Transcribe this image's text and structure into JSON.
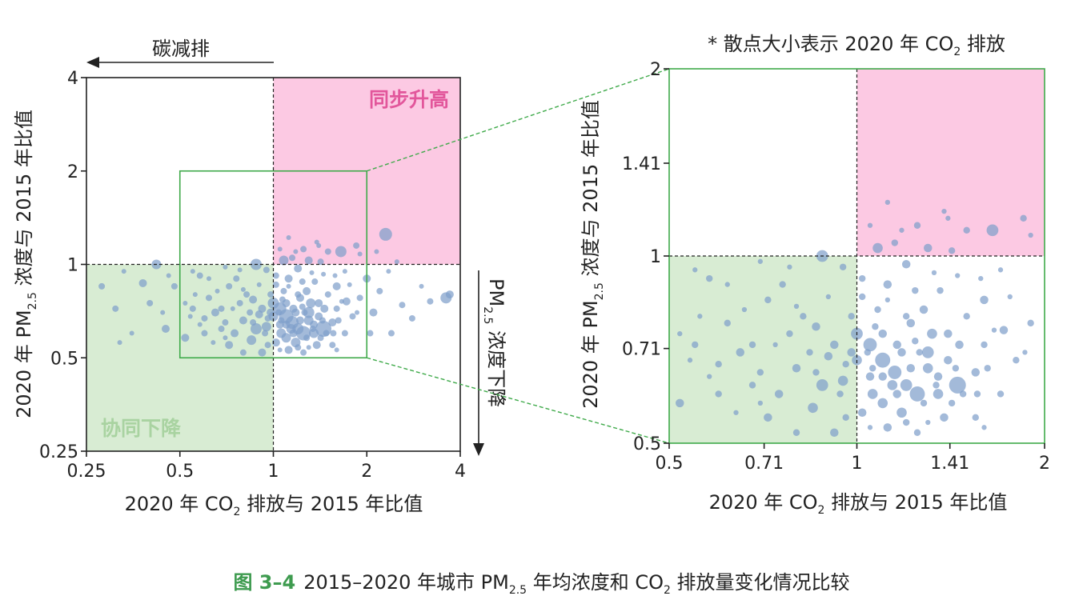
{
  "caption": {
    "figure_number": "图 3–4",
    "text_pre": "2015–2020 年城市 PM",
    "text_sub": "2.5",
    "text_mid": " 年均浓度和 CO",
    "text_sub2": "2",
    "text_post": " 排放量变化情况比较"
  },
  "colors": {
    "point": "#7f9fcb",
    "sync_rise": "#fcc9e3",
    "sync_rise_label": "#e2569b",
    "co_decline": "#d8ecd3",
    "co_decline_label": "#a9d3a1",
    "zoom_box": "#3faa4a"
  },
  "chart_data": [
    {
      "type": "scatter",
      "id": "overview",
      "xlabel_pre": "2020 年 CO",
      "xlabel_sub": "2",
      "xlabel_post": " 排放与 2015 年比值",
      "ylabel_pre": "2020 年 PM",
      "ylabel_sub": "2.5",
      "ylabel_post": " 浓度与 2015 年比值",
      "x_scale": "log2",
      "y_scale": "log2",
      "xlim": [
        0.25,
        4
      ],
      "ylim": [
        0.25,
        4
      ],
      "x_ticks": [
        0.25,
        0.5,
        1,
        2,
        4
      ],
      "x_tick_labels": [
        "0.25",
        "0.5",
        "1",
        "2",
        "4"
      ],
      "y_ticks": [
        0.25,
        0.5,
        1,
        2,
        4
      ],
      "y_tick_labels": [
        "0.25",
        "0.5",
        "1",
        "2",
        "4"
      ],
      "regions": [
        {
          "name": "同步升高",
          "x": [
            1,
            4
          ],
          "y": [
            1,
            4
          ],
          "color": "#fcc9e3"
        },
        {
          "name": "协同下降",
          "x": [
            0.25,
            1
          ],
          "y": [
            0.25,
            1
          ],
          "color": "#d8ecd3"
        }
      ],
      "zoom_box": {
        "x": [
          0.5,
          2
        ],
        "y": [
          0.5,
          2
        ]
      },
      "annotations": {
        "carbon_reduction": "碳减排",
        "pm_decline_pre": "PM",
        "pm_decline_sub": "2.5",
        "pm_decline_post": " 浓度下降"
      }
    },
    {
      "type": "scatter",
      "id": "zoom",
      "note_pre": "* 散点大小表示 2020 年 CO",
      "note_sub": "2",
      "note_post": " 排放",
      "xlabel_pre": "2020 年 CO",
      "xlabel_sub": "2",
      "xlabel_post": " 排放与 2015 年比值",
      "ylabel_pre": "2020 年 PM",
      "ylabel_sub": "2.5",
      "ylabel_post": " 浓度与 2015 年比值",
      "x_scale": "log2",
      "y_scale": "log2",
      "xlim": [
        0.5,
        2
      ],
      "ylim": [
        0.5,
        2
      ],
      "x_ticks": [
        0.5,
        0.71,
        1,
        1.41,
        2
      ],
      "x_tick_labels": [
        "0.5",
        "0.71",
        "1",
        "1.41",
        "2"
      ],
      "y_ticks": [
        0.5,
        0.71,
        1,
        1.41,
        2
      ],
      "y_tick_labels": [
        "0.5",
        "0.71",
        "1",
        "1.41",
        "2"
      ]
    }
  ],
  "points": [
    [
      1.1,
      0.68,
      9
    ],
    [
      1.05,
      0.72,
      8
    ],
    [
      1.15,
      0.65,
      8
    ],
    [
      1.2,
      0.62,
      7
    ],
    [
      1.0,
      0.75,
      7
    ],
    [
      1.3,
      0.7,
      7
    ],
    [
      0.95,
      0.63,
      6
    ],
    [
      1.25,
      0.6,
      9
    ],
    [
      1.45,
      0.62,
      10
    ],
    [
      1.1,
      0.58,
      6
    ],
    [
      1.35,
      0.64,
      5
    ],
    [
      1.18,
      0.7,
      5
    ],
    [
      1.22,
      0.78,
      5
    ],
    [
      1.08,
      0.82,
      4
    ],
    [
      1.12,
      0.9,
      5
    ],
    [
      1.4,
      0.75,
      5
    ],
    [
      1.55,
      0.65,
      5
    ],
    [
      1.6,
      0.72,
      4
    ],
    [
      1.05,
      0.64,
      5
    ],
    [
      0.98,
      0.7,
      5
    ],
    [
      0.92,
      0.72,
      5
    ],
    [
      0.88,
      0.62,
      7
    ],
    [
      0.85,
      0.57,
      6
    ],
    [
      0.8,
      0.66,
      5
    ],
    [
      0.78,
      0.75,
      4
    ],
    [
      0.82,
      0.8,
      4
    ],
    [
      0.75,
      0.6,
      5
    ],
    [
      0.7,
      0.65,
      4
    ],
    [
      0.68,
      0.72,
      4
    ],
    [
      0.65,
      0.7,
      5
    ],
    [
      0.6,
      0.67,
      4
    ],
    [
      0.62,
      0.78,
      4
    ],
    [
      0.72,
      0.85,
      4
    ],
    [
      0.58,
      0.92,
      4
    ],
    [
      0.55,
      0.72,
      4
    ],
    [
      0.52,
      0.58,
      5
    ],
    [
      0.52,
      0.75,
      3
    ],
    [
      0.55,
      0.95,
      3
    ],
    [
      0.88,
      1.0,
      7
    ],
    [
      0.95,
      0.96,
      4
    ],
    [
      1.02,
      0.92,
      4
    ],
    [
      1.08,
      1.03,
      6
    ],
    [
      1.15,
      1.05,
      4
    ],
    [
      1.2,
      0.97,
      5
    ],
    [
      1.3,
      1.03,
      5
    ],
    [
      1.42,
      1.02,
      4
    ],
    [
      1.65,
      1.1,
      7
    ],
    [
      1.85,
      1.15,
      4
    ],
    [
      1.5,
      1.1,
      4
    ],
    [
      1.25,
      1.12,
      4
    ],
    [
      1.12,
      1.22,
      3
    ],
    [
      1.38,
      1.18,
      3
    ],
    [
      1.05,
      1.12,
      3
    ],
    [
      1.6,
      0.85,
      5
    ],
    [
      1.72,
      0.76,
      5
    ],
    [
      1.9,
      0.78,
      4
    ],
    [
      1.8,
      0.68,
      4
    ],
    [
      1.7,
      0.6,
      4
    ],
    [
      1.55,
      0.55,
      4
    ],
    [
      1.38,
      0.55,
      5
    ],
    [
      1.25,
      0.52,
      4
    ],
    [
      1.12,
      0.53,
      5
    ],
    [
      1.02,
      0.56,
      5
    ],
    [
      0.92,
      0.52,
      5
    ],
    [
      0.8,
      0.52,
      4
    ],
    [
      0.72,
      0.55,
      5
    ],
    [
      1.0,
      0.68,
      6
    ],
    [
      1.06,
      0.6,
      6
    ],
    [
      1.14,
      0.62,
      6
    ],
    [
      1.3,
      0.66,
      6
    ],
    [
      1.35,
      0.6,
      6
    ],
    [
      1.18,
      0.56,
      6
    ],
    [
      1.4,
      0.68,
      5
    ],
    [
      1.32,
      0.75,
      6
    ],
    [
      1.28,
      0.82,
      5
    ],
    [
      1.36,
      0.88,
      4
    ],
    [
      1.5,
      0.8,
      4
    ],
    [
      1.46,
      0.72,
      5
    ],
    [
      1.44,
      0.66,
      4
    ],
    [
      1.26,
      0.7,
      4
    ],
    [
      1.16,
      0.72,
      5
    ],
    [
      1.04,
      0.7,
      4
    ],
    [
      0.96,
      0.67,
      4
    ],
    [
      0.9,
      0.69,
      5
    ],
    [
      0.86,
      0.77,
      5
    ],
    [
      0.98,
      0.8,
      4
    ],
    [
      1.07,
      0.77,
      4
    ],
    [
      1.2,
      0.8,
      4
    ],
    [
      1.24,
      0.88,
      4
    ],
    [
      1.12,
      0.85,
      3
    ],
    [
      1.02,
      0.86,
      4
    ],
    [
      0.76,
      0.9,
      4
    ],
    [
      0.66,
      0.82,
      3
    ],
    [
      0.56,
      0.8,
      3
    ],
    [
      0.6,
      0.6,
      4
    ],
    [
      0.7,
      0.58,
      3
    ],
    [
      0.86,
      0.65,
      4
    ],
    [
      0.94,
      0.6,
      4
    ],
    [
      1.1,
      0.64,
      5
    ],
    [
      1.22,
      0.66,
      5
    ],
    [
      1.34,
      0.62,
      4
    ],
    [
      1.48,
      0.6,
      4
    ],
    [
      1.62,
      0.66,
      4
    ],
    [
      1.66,
      0.76,
      3
    ],
    [
      1.76,
      0.86,
      3
    ],
    [
      1.86,
      0.7,
      3
    ],
    [
      1.1,
      0.75,
      5
    ],
    [
      1.06,
      0.66,
      4
    ],
    [
      1.16,
      0.6,
      5
    ],
    [
      1.24,
      0.73,
      4
    ],
    [
      0.8,
      0.83,
      3
    ],
    [
      0.9,
      0.86,
      3
    ],
    [
      0.74,
      0.72,
      3
    ],
    [
      0.84,
      0.7,
      4
    ],
    [
      0.62,
      0.9,
      3
    ],
    [
      0.7,
      0.98,
      3
    ],
    [
      0.78,
      0.96,
      3
    ],
    [
      1.18,
      1.1,
      3
    ],
    [
      1.33,
      0.94,
      3
    ],
    [
      1.45,
      0.93,
      3
    ],
    [
      1.58,
      0.92,
      3
    ],
    [
      1.7,
      0.95,
      3
    ],
    [
      1.9,
      1.08,
      3
    ],
    [
      1.4,
      1.15,
      3
    ],
    [
      1.28,
      0.58,
      4
    ],
    [
      1.42,
      0.58,
      4
    ],
    [
      1.56,
      0.6,
      4
    ],
    [
      1.2,
      0.54,
      4
    ],
    [
      1.3,
      0.54,
      3
    ],
    [
      1.6,
      0.53,
      3
    ],
    [
      1.05,
      0.53,
      3
    ],
    [
      0.96,
      0.55,
      4
    ],
    [
      0.68,
      0.62,
      4
    ],
    [
      0.58,
      0.64,
      3
    ],
    [
      0.54,
      0.68,
      3
    ],
    [
      0.64,
      0.56,
      3
    ],
    [
      2.3,
      1.25,
      8
    ],
    [
      3.6,
      0.78,
      7
    ],
    [
      3.7,
      0.8,
      5
    ],
    [
      2.6,
      0.74,
      4
    ],
    [
      3.2,
      0.76,
      4
    ],
    [
      2.8,
      0.67,
      4
    ],
    [
      2.0,
      0.9,
      5
    ],
    [
      2.1,
      0.7,
      5
    ],
    [
      2.4,
      0.6,
      4
    ],
    [
      2.15,
      1.1,
      3
    ],
    [
      2.5,
      1.02,
      3
    ],
    [
      3.0,
      0.85,
      3
    ],
    [
      2.2,
      0.82,
      4
    ],
    [
      2.35,
      0.95,
      3
    ],
    [
      2.05,
      0.6,
      4
    ],
    [
      0.42,
      1.0,
      6
    ],
    [
      0.38,
      0.87,
      5
    ],
    [
      0.31,
      0.72,
      4
    ],
    [
      0.45,
      0.62,
      5
    ],
    [
      0.35,
      0.6,
      3
    ],
    [
      0.48,
      0.85,
      4
    ],
    [
      0.4,
      0.75,
      4
    ],
    [
      0.28,
      0.85,
      4
    ],
    [
      0.33,
      0.95,
      3
    ],
    [
      0.46,
      0.92,
      3
    ],
    [
      0.44,
      0.7,
      3
    ],
    [
      0.32,
      0.56,
      3
    ]
  ]
}
